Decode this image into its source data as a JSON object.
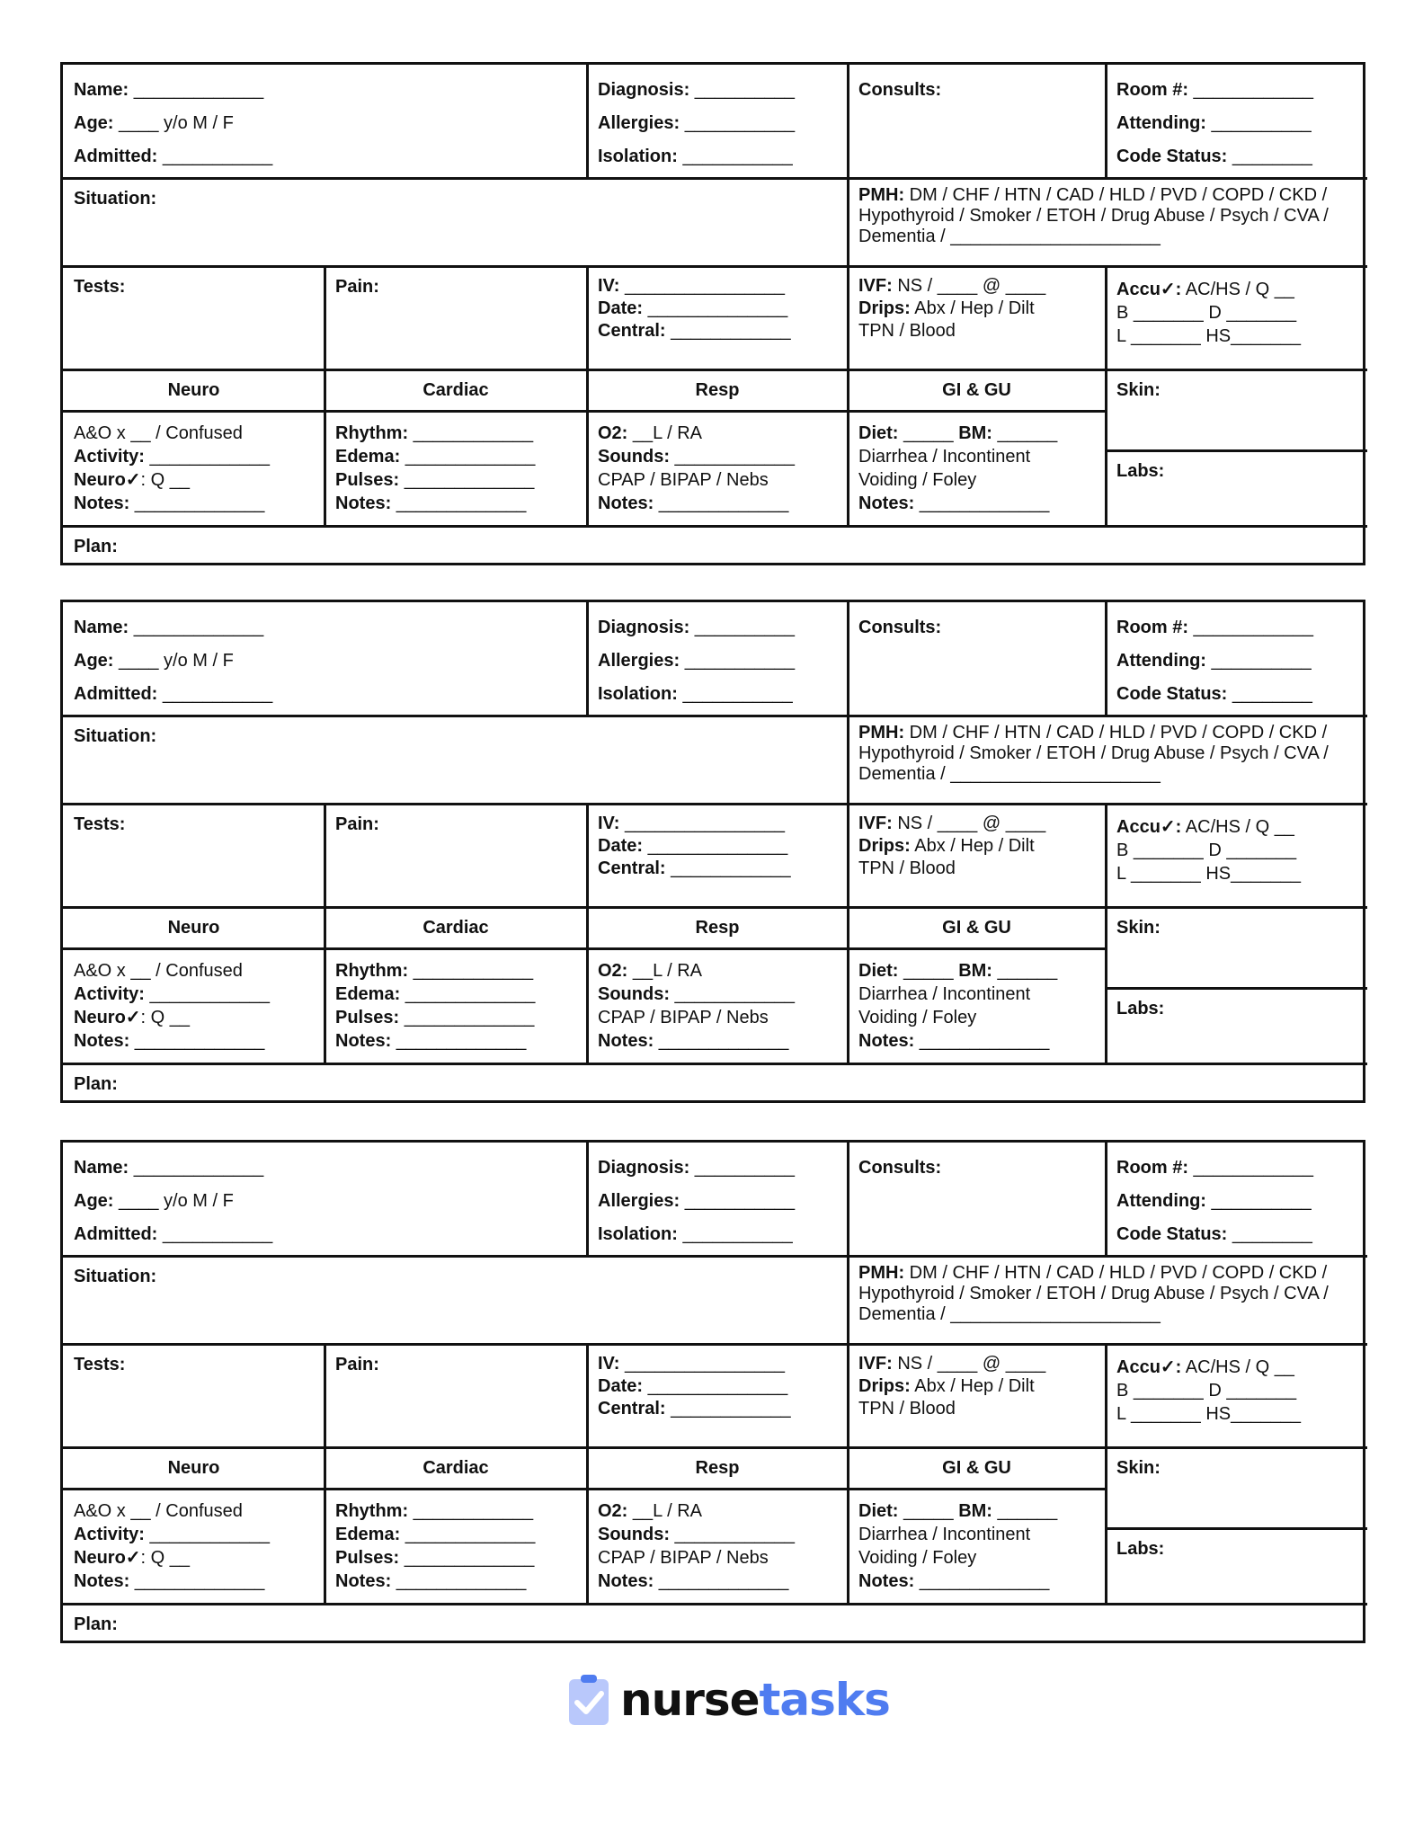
{
  "blocks": [
    {
      "header": {
        "name": [
          {
            "label": "Name:",
            "text": " _____________"
          },
          {
            "label": "Age:",
            "text": " ____ y/o M / F"
          },
          {
            "label": "Admitted:",
            "text": " ___________"
          }
        ],
        "diag": [
          {
            "label": "Diagnosis:",
            "text": " __________"
          },
          {
            "label": "Allergies:",
            "text": " ___________"
          },
          {
            "label": "Isolation:",
            "text": " ___________"
          }
        ],
        "consults": "Consults:",
        "room": [
          {
            "label": "Room #:",
            "text": " ____________"
          },
          {
            "label": "Attending:",
            "text": " __________"
          },
          {
            "label": "Code Status:",
            "text": " ________"
          }
        ]
      },
      "situation": "Situation:",
      "pmh": [
        {
          "label": "PMH:",
          "text": " DM / CHF / HTN / CAD / HLD / PVD / COPD / CKD /"
        },
        {
          "label": "",
          "text": "Hypothyroid / Smoker / ETOH / Drug Abuse /  Psych / CVA /"
        },
        {
          "label": "",
          "text": "Dementia / _____________________"
        }
      ],
      "tests": "Tests:",
      "pain": "Pain:",
      "iv": [
        {
          "label": "IV:",
          "text": "  ________________"
        },
        {
          "label": "Date:",
          "text": "  ______________"
        },
        {
          "label": "Central:",
          "text": "  ____________"
        }
      ],
      "ivf": [
        {
          "label": "IVF:",
          "text": " NS / ____ @ ____"
        },
        {
          "label": "Drips:",
          "text": "  Abx  /  Hep  /  Dilt"
        },
        {
          "label": "",
          "text": "TPN  /  Blood"
        }
      ],
      "accu": [
        {
          "label": "Accu✓:",
          "text": " AC/HS / Q __"
        },
        {
          "label": "",
          "text": "B _______    D _______"
        },
        {
          "label": "",
          "text": "L _______    HS_______"
        }
      ],
      "systems": [
        "Neuro",
        "Cardiac",
        "Resp",
        "GI & GU"
      ],
      "skin": "Skin:",
      "labs": "Labs:",
      "neuro": [
        {
          "label": "",
          "text": "A&O x __  /  Confused"
        },
        {
          "label": "Activity:",
          "text": " ____________"
        },
        {
          "label": "Neuro✓",
          "text": ": Q __"
        },
        {
          "label": "Notes:",
          "text": " _____________"
        }
      ],
      "cardiac": [
        {
          "label": "Rhythm:",
          "text": " ____________"
        },
        {
          "label": "Edema:",
          "text": " _____________"
        },
        {
          "label": "Pulses:",
          "text": " _____________"
        },
        {
          "label": "Notes:",
          "text": " _____________"
        }
      ],
      "resp": [
        {
          "label": "O2:",
          "text": " __L  /  RA"
        },
        {
          "label": "Sounds:",
          "text": " ____________"
        },
        {
          "label": "",
          "text": "CPAP / BIPAP / Nebs"
        },
        {
          "label": "Notes:",
          "text": " _____________"
        }
      ],
      "gi": [
        {
          "label": "Diet:",
          "text": " _____ "
        },
        {
          "label": "",
          "text": "Diarrhea / Incontinent"
        },
        {
          "label": "",
          "text": "Voiding / Foley"
        },
        {
          "label": "Notes:",
          "text": " _____________"
        }
      ],
      "bm": {
        "label": "BM:",
        "text": " ______"
      },
      "plan": "Plan:"
    },
    {
      "header": {
        "name": [
          {
            "label": "Name:",
            "text": " _____________"
          },
          {
            "label": "Age:",
            "text": " ____ y/o M / F"
          },
          {
            "label": "Admitted:",
            "text": " ___________"
          }
        ],
        "diag": [
          {
            "label": "Diagnosis:",
            "text": " __________"
          },
          {
            "label": "Allergies:",
            "text": " ___________"
          },
          {
            "label": "Isolation:",
            "text": " ___________"
          }
        ],
        "consults": "Consults:",
        "room": [
          {
            "label": "Room #:",
            "text": " ____________"
          },
          {
            "label": "Attending:",
            "text": " __________"
          },
          {
            "label": "Code Status:",
            "text": " ________"
          }
        ]
      },
      "situation": "Situation:",
      "pmh": [
        {
          "label": "PMH:",
          "text": " DM / CHF / HTN / CAD / HLD / PVD / COPD / CKD /"
        },
        {
          "label": "",
          "text": "Hypothyroid / Smoker / ETOH / Drug Abuse /  Psych / CVA /"
        },
        {
          "label": "",
          "text": "Dementia / _____________________"
        }
      ],
      "tests": "Tests:",
      "pain": "Pain:",
      "iv": [
        {
          "label": "IV:",
          "text": "  ________________"
        },
        {
          "label": "Date:",
          "text": "  ______________"
        },
        {
          "label": "Central:",
          "text": "  ____________"
        }
      ],
      "ivf": [
        {
          "label": "IVF:",
          "text": " NS / ____ @ ____"
        },
        {
          "label": "Drips:",
          "text": "  Abx  /  Hep  /  Dilt"
        },
        {
          "label": "",
          "text": "TPN  /  Blood"
        }
      ],
      "accu": [
        {
          "label": "Accu✓:",
          "text": " AC/HS / Q __"
        },
        {
          "label": "",
          "text": "B _______    D _______"
        },
        {
          "label": "",
          "text": "L _______    HS_______"
        }
      ],
      "systems": [
        "Neuro",
        "Cardiac",
        "Resp",
        "GI & GU"
      ],
      "skin": "Skin:",
      "labs": "Labs:",
      "neuro": [
        {
          "label": "",
          "text": "A&O x __  /  Confused"
        },
        {
          "label": "Activity:",
          "text": " ____________"
        },
        {
          "label": "Neuro✓",
          "text": ": Q __"
        },
        {
          "label": "Notes:",
          "text": " _____________"
        }
      ],
      "cardiac": [
        {
          "label": "Rhythm:",
          "text": " ____________"
        },
        {
          "label": "Edema:",
          "text": " _____________"
        },
        {
          "label": "Pulses:",
          "text": " _____________"
        },
        {
          "label": "Notes:",
          "text": " _____________"
        }
      ],
      "resp": [
        {
          "label": "O2:",
          "text": " __L  /  RA"
        },
        {
          "label": "Sounds:",
          "text": " ____________"
        },
        {
          "label": "",
          "text": "CPAP / BIPAP / Nebs"
        },
        {
          "label": "Notes:",
          "text": " _____________"
        }
      ],
      "gi": [
        {
          "label": "Diet:",
          "text": " _____ "
        },
        {
          "label": "",
          "text": "Diarrhea / Incontinent"
        },
        {
          "label": "",
          "text": "Voiding / Foley"
        },
        {
          "label": "Notes:",
          "text": " _____________"
        }
      ],
      "bm": {
        "label": "BM:",
        "text": " ______"
      },
      "plan": "Plan:"
    },
    {
      "header": {
        "name": [
          {
            "label": "Name:",
            "text": " _____________"
          },
          {
            "label": "Age:",
            "text": " ____ y/o M / F"
          },
          {
            "label": "Admitted:",
            "text": " ___________"
          }
        ],
        "diag": [
          {
            "label": "Diagnosis:",
            "text": " __________"
          },
          {
            "label": "Allergies:",
            "text": " ___________"
          },
          {
            "label": "Isolation:",
            "text": " ___________"
          }
        ],
        "consults": "Consults:",
        "room": [
          {
            "label": "Room #:",
            "text": " ____________"
          },
          {
            "label": "Attending:",
            "text": " __________"
          },
          {
            "label": "Code Status:",
            "text": " ________"
          }
        ]
      },
      "situation": "Situation:",
      "pmh": [
        {
          "label": "PMH:",
          "text": " DM / CHF / HTN / CAD / HLD / PVD / COPD / CKD /"
        },
        {
          "label": "",
          "text": "Hypothyroid / Smoker / ETOH / Drug Abuse /  Psych / CVA /"
        },
        {
          "label": "",
          "text": "Dementia / _____________________"
        }
      ],
      "tests": "Tests:",
      "pain": "Pain:",
      "iv": [
        {
          "label": "IV:",
          "text": "  ________________"
        },
        {
          "label": "Date:",
          "text": "  ______________"
        },
        {
          "label": "Central:",
          "text": "  ____________"
        }
      ],
      "ivf": [
        {
          "label": "IVF:",
          "text": " NS / ____ @ ____"
        },
        {
          "label": "Drips:",
          "text": "  Abx  /  Hep  /  Dilt"
        },
        {
          "label": "",
          "text": "TPN  /  Blood"
        }
      ],
      "accu": [
        {
          "label": "Accu✓:",
          "text": " AC/HS / Q __"
        },
        {
          "label": "",
          "text": "B _______    D _______"
        },
        {
          "label": "",
          "text": "L _______    HS_______"
        }
      ],
      "systems": [
        "Neuro",
        "Cardiac",
        "Resp",
        "GI & GU"
      ],
      "skin": "Skin:",
      "labs": "Labs:",
      "neuro": [
        {
          "label": "",
          "text": "A&O x __  /  Confused"
        },
        {
          "label": "Activity:",
          "text": " ____________"
        },
        {
          "label": "Neuro✓",
          "text": ": Q __"
        },
        {
          "label": "Notes:",
          "text": " _____________"
        }
      ],
      "cardiac": [
        {
          "label": "Rhythm:",
          "text": " ____________"
        },
        {
          "label": "Edema:",
          "text": " _____________"
        },
        {
          "label": "Pulses:",
          "text": " _____________"
        },
        {
          "label": "Notes:",
          "text": " _____________"
        }
      ],
      "resp": [
        {
          "label": "O2:",
          "text": " __L  /  RA"
        },
        {
          "label": "Sounds:",
          "text": " ____________"
        },
        {
          "label": "",
          "text": "CPAP / BIPAP / Nebs"
        },
        {
          "label": "Notes:",
          "text": " _____________"
        }
      ],
      "gi": [
        {
          "label": "Diet:",
          "text": " _____ "
        },
        {
          "label": "",
          "text": "Diarrhea / Incontinent"
        },
        {
          "label": "",
          "text": "Voiding / Foley"
        },
        {
          "label": "Notes:",
          "text": " _____________"
        }
      ],
      "bm": {
        "label": "BM:",
        "text": " ______"
      },
      "plan": "Plan:"
    }
  ],
  "logo": {
    "part1": "nurse",
    "part2": "tasks",
    "icon": "clipboard-check-icon",
    "colors": {
      "dark": "#111111",
      "accent": "#4f7cf0",
      "icon_bg": "#b9c8fb"
    }
  }
}
